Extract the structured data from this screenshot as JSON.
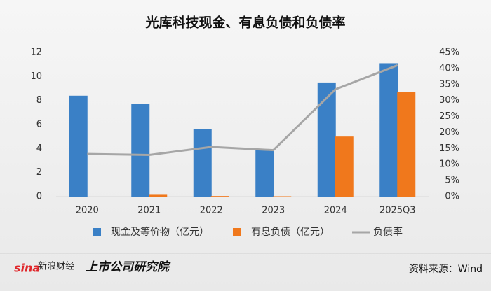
{
  "chart_data": {
    "type": "bar",
    "title": "光库科技现金、有息负债和负债率",
    "categories": [
      "2020",
      "2021",
      "2022",
      "2023",
      "2024",
      "2025Q3"
    ],
    "series": [
      {
        "name": "现金及等价物（亿元）",
        "color": "#3a80c6",
        "values": [
          8.4,
          7.7,
          5.6,
          3.9,
          9.5,
          11.1
        ]
      },
      {
        "name": "有息负债（亿元）",
        "color": "#f0781c",
        "values": [
          0,
          0.15,
          0.05,
          0.03,
          5.0,
          8.7
        ]
      },
      {
        "name": "负债率",
        "color": "#a6a6a6",
        "type": "line",
        "axis": "y2",
        "values": [
          13.3,
          13.0,
          15.5,
          14.5,
          33.5,
          41.0
        ]
      }
    ],
    "ylim": [
      0,
      12
    ],
    "yticks": [
      0,
      2,
      4,
      6,
      8,
      10,
      12
    ],
    "y2lim": [
      0,
      45
    ],
    "y2ticks": [
      {
        "value": 0,
        "label": "0%"
      },
      {
        "value": 5,
        "label": "5%"
      },
      {
        "value": 10,
        "label": "10%"
      },
      {
        "value": 15,
        "label": "15%"
      },
      {
        "value": 20,
        "label": "20%"
      },
      {
        "value": 25,
        "label": "25%"
      },
      {
        "value": 30,
        "label": "30%"
      },
      {
        "value": 35,
        "label": "35%"
      },
      {
        "value": 40,
        "label": "40%"
      },
      {
        "value": 45,
        "label": "45%"
      }
    ],
    "grid": false,
    "legend": "bottom",
    "source": "资料来源：Wind",
    "branding": [
      "sina",
      "新浪财经",
      "上市公司研究院"
    ]
  }
}
